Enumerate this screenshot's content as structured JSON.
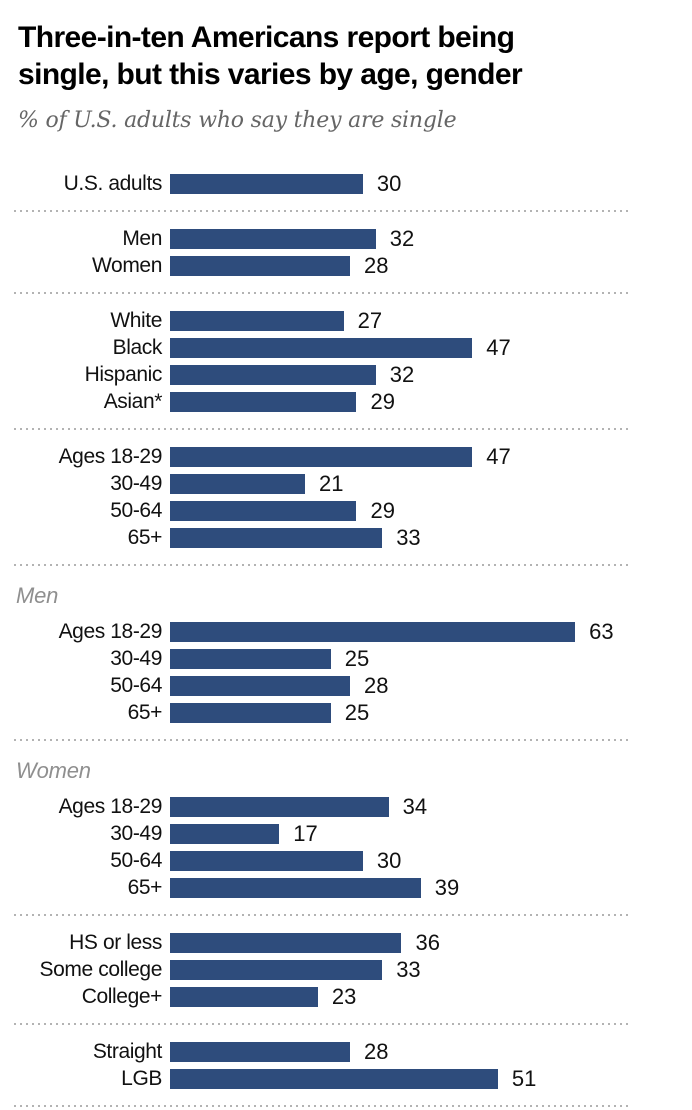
{
  "header": {
    "title_line1": "Three-in-ten Americans report being",
    "title_line2": "single, but this varies by age, gender",
    "subtitle": "% of U.S. adults who say they are single"
  },
  "colors": {
    "bar": "#2e4c7c",
    "divider": "#b3b3b3",
    "section_header_text": "#8f8f8f",
    "subtitle_text": "#666666"
  },
  "chart_data": {
    "type": "bar",
    "orientation": "horizontal",
    "unit": "percent",
    "title": "Three-in-ten Americans report being single, but this varies by age, gender",
    "subtitle": "% of U.S. adults who say they are single",
    "xlim": [
      0,
      70
    ],
    "value_labels_shown": true,
    "axis_shown": false,
    "grid": false,
    "groups": [
      {
        "header": null,
        "rows": [
          {
            "label": "U.S. adults",
            "value": 30
          }
        ]
      },
      {
        "header": null,
        "rows": [
          {
            "label": "Men",
            "value": 32
          },
          {
            "label": "Women",
            "value": 28
          }
        ]
      },
      {
        "header": null,
        "rows": [
          {
            "label": "White",
            "value": 27
          },
          {
            "label": "Black",
            "value": 47
          },
          {
            "label": "Hispanic",
            "value": 32
          },
          {
            "label": "Asian*",
            "value": 29
          }
        ]
      },
      {
        "header": null,
        "rows": [
          {
            "label": "Ages 18-29",
            "value": 47
          },
          {
            "label": "30-49",
            "value": 21
          },
          {
            "label": "50-64",
            "value": 29
          },
          {
            "label": "65+",
            "value": 33
          }
        ]
      },
      {
        "header": "Men",
        "rows": [
          {
            "label": "Ages 18-29",
            "value": 63
          },
          {
            "label": "30-49",
            "value": 25
          },
          {
            "label": "50-64",
            "value": 28
          },
          {
            "label": "65+",
            "value": 25
          }
        ]
      },
      {
        "header": "Women",
        "rows": [
          {
            "label": "Ages 18-29",
            "value": 34
          },
          {
            "label": "30-49",
            "value": 17
          },
          {
            "label": "50-64",
            "value": 30
          },
          {
            "label": "65+",
            "value": 39
          }
        ]
      },
      {
        "header": null,
        "rows": [
          {
            "label": "HS or less",
            "value": 36
          },
          {
            "label": "Some college",
            "value": 33
          },
          {
            "label": "College+",
            "value": 23
          }
        ]
      },
      {
        "header": null,
        "rows": [
          {
            "label": "Straight",
            "value": 28
          },
          {
            "label": "LGB",
            "value": 51
          }
        ]
      }
    ]
  }
}
